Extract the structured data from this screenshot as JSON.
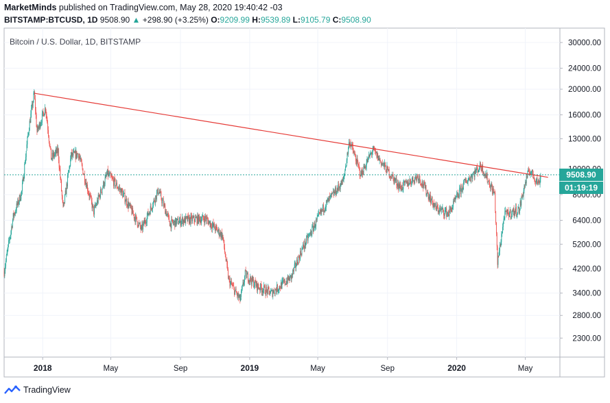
{
  "header": {
    "author": "MarketMinds",
    "published": "published on TradingView.com, May 28, 2020 19:40:42 -03",
    "symbol": "BITSTAMP:BTCUSD, 1D",
    "last": "9508.90",
    "arrow": "▲",
    "change": "+298.90 (+3.25%)",
    "o_label": "O:",
    "o": "9209.99",
    "h_label": "H:",
    "h": "9539.89",
    "l_label": "L:",
    "l": "9105.79",
    "c_label": "C:",
    "c": "9508.90"
  },
  "chart_title": "Bitcoin / U.S. Dollar, 1D, BITSTAMP",
  "price_tag": "9508.90",
  "countdown_tag": "01:19:19",
  "footer": {
    "brand": "TradingView"
  },
  "colors": {
    "up": "#26a69a",
    "down": "#ef5350",
    "trendline": "#e53935",
    "axis": "#131722"
  },
  "chart_data": {
    "type": "candlestick",
    "scale": "log",
    "ylim": [
      1950,
      34000
    ],
    "xlim": [
      "2017-10-25",
      "2020-07-01"
    ],
    "y_ticks": [
      "30000.00",
      "24000.00",
      "20000.00",
      "16000.00",
      "13000.00",
      "10000.00",
      "8000.00",
      "6400.00",
      "5200.00",
      "4200.00",
      "3400.00",
      "2800.00",
      "2300.00"
    ],
    "y_tick_values": [
      30000,
      24000,
      20000,
      16000,
      13000,
      10000,
      8000,
      6400,
      5200,
      4200,
      3400,
      2800,
      2300
    ],
    "x_ticks": [
      "2018",
      "May",
      "Sep",
      "2019",
      "May",
      "Sep",
      "2020",
      "May"
    ],
    "x_tick_dates": [
      "2018-01-01",
      "2018-05-01",
      "2018-09-01",
      "2019-01-01",
      "2019-05-01",
      "2019-09-01",
      "2020-01-01",
      "2020-05-01"
    ],
    "current_price": 9508.9,
    "trendline": [
      {
        "date": "2017-12-17",
        "value": 19300
      },
      {
        "date": "2020-06-10",
        "value": 9300
      }
    ],
    "series": [
      {
        "date": "2017-10-25",
        "close": 4100
      },
      {
        "date": "2017-11-10",
        "close": 6600
      },
      {
        "date": "2017-11-25",
        "close": 8200
      },
      {
        "date": "2017-12-07",
        "close": 14000
      },
      {
        "date": "2017-12-17",
        "close": 19300
      },
      {
        "date": "2017-12-22",
        "close": 13800
      },
      {
        "date": "2018-01-06",
        "close": 17100
      },
      {
        "date": "2018-01-16",
        "close": 11000
      },
      {
        "date": "2018-01-28",
        "close": 11700
      },
      {
        "date": "2018-02-06",
        "close": 7000
      },
      {
        "date": "2018-02-20",
        "close": 11200
      },
      {
        "date": "2018-03-05",
        "close": 11400
      },
      {
        "date": "2018-04-01",
        "close": 6900
      },
      {
        "date": "2018-04-25",
        "close": 9600
      },
      {
        "date": "2018-05-20",
        "close": 8200
      },
      {
        "date": "2018-06-24",
        "close": 5900
      },
      {
        "date": "2018-07-24",
        "close": 8300
      },
      {
        "date": "2018-08-14",
        "close": 6200
      },
      {
        "date": "2018-09-05",
        "close": 6400
      },
      {
        "date": "2018-10-15",
        "close": 6500
      },
      {
        "date": "2018-11-14",
        "close": 5600
      },
      {
        "date": "2018-11-25",
        "close": 3800
      },
      {
        "date": "2018-12-15",
        "close": 3200
      },
      {
        "date": "2018-12-24",
        "close": 4000
      },
      {
        "date": "2019-01-15",
        "close": 3600
      },
      {
        "date": "2019-02-08",
        "close": 3400
      },
      {
        "date": "2019-03-15",
        "close": 3900
      },
      {
        "date": "2019-04-02",
        "close": 4900
      },
      {
        "date": "2019-05-12",
        "close": 7200
      },
      {
        "date": "2019-06-15",
        "close": 9000
      },
      {
        "date": "2019-06-26",
        "close": 12800
      },
      {
        "date": "2019-07-16",
        "close": 9500
      },
      {
        "date": "2019-08-06",
        "close": 11800
      },
      {
        "date": "2019-08-28",
        "close": 10100
      },
      {
        "date": "2019-09-24",
        "close": 8500
      },
      {
        "date": "2019-10-25",
        "close": 9400
      },
      {
        "date": "2019-11-25",
        "close": 7100
      },
      {
        "date": "2019-12-18",
        "close": 6800
      },
      {
        "date": "2020-01-14",
        "close": 8800
      },
      {
        "date": "2020-02-13",
        "close": 10300
      },
      {
        "date": "2020-03-08",
        "close": 8000
      },
      {
        "date": "2020-03-13",
        "close": 4400
      },
      {
        "date": "2020-03-25",
        "close": 6700
      },
      {
        "date": "2020-04-20",
        "close": 7000
      },
      {
        "date": "2020-04-30",
        "close": 8700
      },
      {
        "date": "2020-05-08",
        "close": 9900
      },
      {
        "date": "2020-05-25",
        "close": 8800
      },
      {
        "date": "2020-05-28",
        "close": 9508.9
      }
    ]
  }
}
